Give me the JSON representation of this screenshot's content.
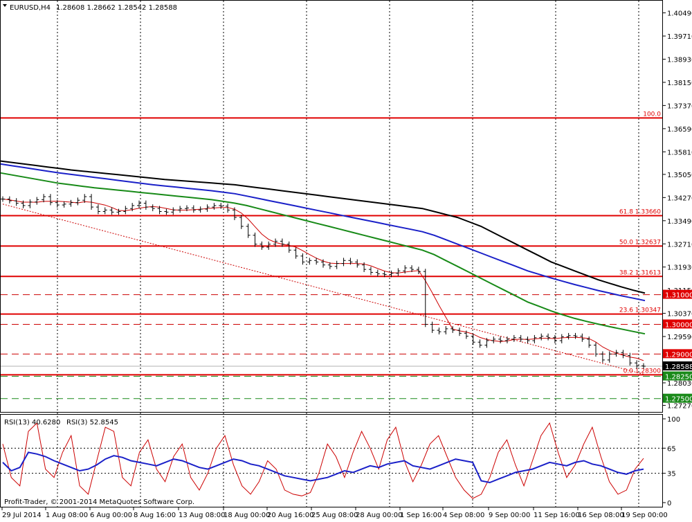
{
  "header": {
    "symbol": "EURUSD,H4",
    "ohlc": "1.28608 1.28662 1.28542 1.28588"
  },
  "rsi_header": {
    "a": "RSI(13) 40.6280",
    "b": "RSI(3) 52.8545"
  },
  "copyright": "Profit-Trader, © 2001-2014 MetaQuotes Software Corp.",
  "colors": {
    "price_bar": "#000000",
    "ma_black": "#000000",
    "ma_blue": "#1a20c8",
    "ma_green": "#178a17",
    "ma_fast": "#cc0000",
    "level_line": "#e00000",
    "level_dash": "#cc0000",
    "green_dash": "#1a8a1a",
    "rsi13": "#1a20c8",
    "rsi3": "#cc0000"
  },
  "chart_data": {
    "type": "line",
    "title": "EURUSD,H4",
    "x_tick_labels": [
      "29 Jul 2014",
      "1 Aug 08:00",
      "6 Aug 00:00",
      "8 Aug 16:00",
      "13 Aug 08:00",
      "18 Aug 00:00",
      "20 Aug 16:00",
      "25 Aug 08:00",
      "28 Aug 00:00",
      "1 Sep 16:00",
      "4 Sep 08:00",
      "9 Sep 00:00",
      "11 Sep 16:00",
      "16 Sep 08:00",
      "19 Sep 00:00"
    ],
    "y_tick_labels": [
      "1.40490",
      "1.39710",
      "1.38930",
      "1.38150",
      "1.37370",
      "1.36590",
      "1.35810",
      "1.35050",
      "1.34270",
      "1.33490",
      "1.32710",
      "1.31930",
      "1.31150",
      "1.30370",
      "1.29590",
      "1.28030",
      "1.27270"
    ],
    "ylim": [
      1.2705,
      1.409
    ],
    "series": [
      {
        "values": [
          1.3422,
          1.3416,
          1.3408,
          1.34,
          1.3412,
          1.342,
          1.343,
          1.341,
          1.3402,
          1.3405,
          1.341,
          1.3418,
          1.343,
          1.3395,
          1.338,
          1.3385,
          1.3378,
          1.338,
          1.339,
          1.34,
          1.3408,
          1.3395,
          1.339,
          1.338,
          1.3378,
          1.3385,
          1.339,
          1.3392,
          1.3385,
          1.3388,
          1.3395,
          1.34,
          1.3398,
          1.3385,
          1.336,
          1.333,
          1.33,
          1.327,
          1.326,
          1.327,
          1.328,
          1.327,
          1.325,
          1.323,
          1.321,
          1.3215,
          1.321,
          1.32,
          1.3195,
          1.3205,
          1.3215,
          1.321,
          1.32,
          1.3185,
          1.3175,
          1.317,
          1.3168,
          1.3172,
          1.318,
          1.319,
          1.3185,
          1.3178,
          1.3,
          1.298,
          1.2975,
          1.2985,
          1.298,
          1.297,
          1.296,
          1.294,
          1.293,
          1.2945,
          1.295,
          1.2945,
          1.295,
          1.2955,
          1.295,
          1.2945,
          1.2955,
          1.296,
          1.2955,
          1.2945,
          1.2958,
          1.2962,
          1.296,
          1.295,
          1.293,
          1.29,
          1.288,
          1.29,
          1.2905,
          1.2895,
          1.287,
          1.286,
          1.2859
        ]
      },
      {
        "values": [
          1.355,
          1.3545,
          1.354,
          1.3535,
          1.353,
          1.3525,
          1.352,
          1.3516,
          1.3512,
          1.3508,
          1.3504,
          1.35,
          1.3496,
          1.3492,
          1.3488,
          1.3485,
          1.3482,
          1.3479,
          1.3476,
          1.3473,
          1.347,
          1.3465,
          1.346,
          1.3455,
          1.345,
          1.3445,
          1.344,
          1.3435,
          1.343,
          1.3425,
          1.342,
          1.3415,
          1.341,
          1.3405,
          1.34,
          1.3395,
          1.339,
          1.338,
          1.337,
          1.336,
          1.3345,
          1.333,
          1.331,
          1.329,
          1.327,
          1.325,
          1.323,
          1.321,
          1.3195,
          1.318,
          1.3165,
          1.315,
          1.3138,
          1.3126,
          1.3115,
          1.3105
        ]
      },
      {
        "values": [
          1.354,
          1.3534,
          1.3528,
          1.3522,
          1.3516,
          1.351,
          1.3505,
          1.35,
          1.3495,
          1.349,
          1.3485,
          1.348,
          1.3475,
          1.347,
          1.3466,
          1.3462,
          1.3458,
          1.3454,
          1.345,
          1.3445,
          1.344,
          1.3432,
          1.3424,
          1.3416,
          1.3408,
          1.34,
          1.3392,
          1.3384,
          1.3376,
          1.3368,
          1.336,
          1.3352,
          1.3344,
          1.3336,
          1.3328,
          1.332,
          1.3312,
          1.33,
          1.3285,
          1.327,
          1.3255,
          1.324,
          1.3225,
          1.321,
          1.3195,
          1.318,
          1.3168,
          1.3156,
          1.3145,
          1.3134,
          1.3124,
          1.3114,
          1.3105,
          1.3096,
          1.3088,
          1.308
        ]
      },
      {
        "values": [
          1.351,
          1.3503,
          1.3496,
          1.3489,
          1.3482,
          1.3475,
          1.347,
          1.3465,
          1.346,
          1.3456,
          1.3452,
          1.3448,
          1.3444,
          1.344,
          1.3436,
          1.3432,
          1.3428,
          1.3424,
          1.342,
          1.3414,
          1.3408,
          1.34,
          1.339,
          1.338,
          1.337,
          1.336,
          1.335,
          1.334,
          1.333,
          1.332,
          1.331,
          1.33,
          1.329,
          1.328,
          1.327,
          1.326,
          1.325,
          1.3235,
          1.3215,
          1.3195,
          1.3175,
          1.3155,
          1.3135,
          1.3115,
          1.3095,
          1.3075,
          1.306,
          1.3045,
          1.3032,
          1.302,
          1.301,
          1.3001,
          1.2992,
          1.2984,
          1.2976,
          1.2968
        ]
      }
    ],
    "fib_levels": [
      {
        "label": "100.0",
        "price": 1.3695
      },
      {
        "label": "61.8 1.33660",
        "price": 1.3366
      },
      {
        "label": "50.0 1.32637",
        "price": 1.32637
      },
      {
        "label": "38.2 1.31613",
        "price": 1.31613
      },
      {
        "label": "23.6 1.30347",
        "price": 1.30347
      },
      {
        "label": "0.0 1.28300",
        "price": 1.283
      }
    ],
    "dashed_levels": [
      {
        "label": "1.31000",
        "price": 1.31
      },
      {
        "label": "1.30000",
        "price": 1.3
      },
      {
        "label": "1.29000",
        "price": 1.29
      }
    ],
    "green_levels": [
      {
        "label": "1.28250",
        "price": 1.2825
      },
      {
        "label": "1.27500",
        "price": 1.275
      }
    ],
    "current_price": {
      "label": "1.28588",
      "price": 1.28588
    },
    "rsi": {
      "ylim": [
        0,
        100
      ],
      "levels": [
        65,
        35
      ],
      "tick_labels": [
        "100",
        "65",
        "35",
        "0"
      ],
      "rsi13": [
        48,
        38,
        42,
        60,
        58,
        55,
        50,
        46,
        42,
        38,
        40,
        45,
        52,
        56,
        54,
        50,
        48,
        46,
        44,
        48,
        52,
        50,
        46,
        42,
        40,
        44,
        48,
        52,
        50,
        46,
        44,
        40,
        36,
        32,
        30,
        28,
        26,
        28,
        30,
        34,
        38,
        36,
        40,
        44,
        42,
        46,
        48,
        50,
        44,
        42,
        40,
        44,
        48,
        52,
        50,
        48,
        26,
        24,
        28,
        32,
        36,
        38,
        40,
        44,
        48,
        46,
        44,
        48,
        50,
        46,
        44,
        40,
        36,
        34,
        38,
        40
      ],
      "rsi3": [
        70,
        30,
        20,
        85,
        95,
        40,
        30,
        60,
        80,
        20,
        10,
        50,
        90,
        85,
        30,
        20,
        60,
        75,
        40,
        25,
        55,
        70,
        30,
        15,
        35,
        65,
        80,
        45,
        20,
        10,
        25,
        50,
        40,
        15,
        10,
        8,
        12,
        35,
        70,
        55,
        30,
        60,
        85,
        65,
        40,
        75,
        90,
        50,
        25,
        45,
        70,
        80,
        55,
        30,
        15,
        5,
        10,
        30,
        60,
        75,
        45,
        20,
        50,
        80,
        95,
        60,
        30,
        45,
        70,
        90,
        55,
        25,
        10,
        15,
        40,
        52.85
      ]
    }
  }
}
